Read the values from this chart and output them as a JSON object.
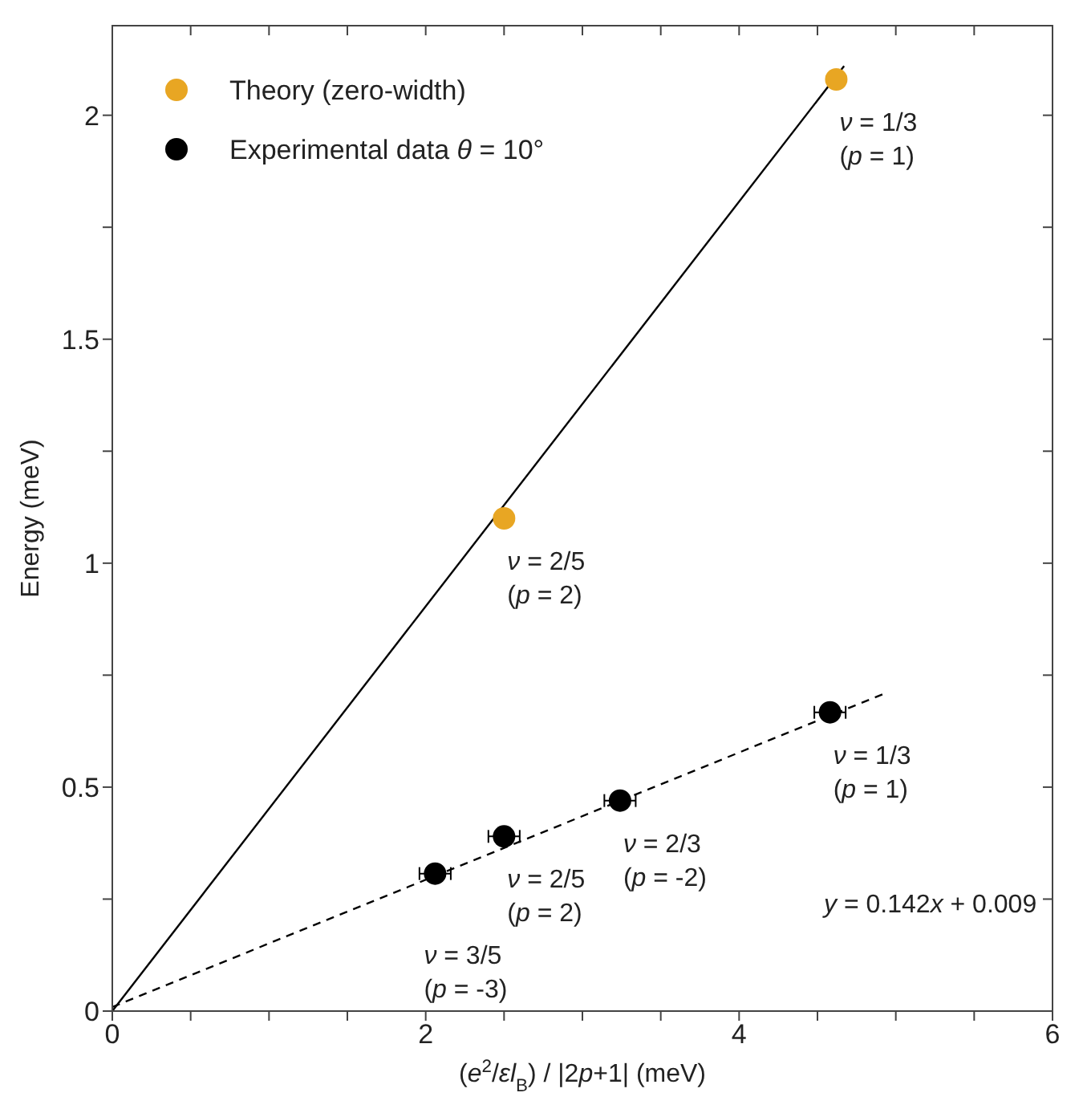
{
  "chart_data": {
    "type": "scatter",
    "xlabel": "(e$^{2}$/εl$_{B}$) / |2p+1|  (meV)",
    "ylabel": "Energy (meV)",
    "xlim": [
      0,
      6
    ],
    "xticks": [
      0,
      {
        "value": 0.5,
        "label": null
      },
      {
        "value": 1,
        "label": null
      },
      {
        "value": 1.5,
        "label": null
      },
      2,
      {
        "value": 2.5,
        "label": null
      },
      {
        "value": 3,
        "label": null
      },
      {
        "value": 3.5,
        "label": null
      },
      4,
      {
        "value": 4.5,
        "label": null
      },
      {
        "value": 5,
        "label": null
      },
      {
        "value": 5.5,
        "label": null
      },
      6
    ],
    "ylim": [
      0,
      2.2
    ],
    "yticks": [
      0,
      {
        "value": 0.25,
        "label": null
      },
      0.5,
      {
        "value": 0.75,
        "label": null
      },
      1,
      {
        "value": 1.25,
        "label": null
      },
      1.5,
      {
        "value": 1.75,
        "label": null
      },
      2
    ],
    "grid": false,
    "legend": "top left",
    "series": [
      {
        "name": "Theory (zero-width)",
        "color": "#e8a623",
        "marker": "circle",
        "x": [
          4.62,
          2.5
        ],
        "values": [
          2.08,
          1.1
        ]
      },
      {
        "name": "Experimental data  θ = 10°",
        "color": "#000000",
        "marker": "circle",
        "x": [
          2.06,
          2.5,
          3.24,
          4.58
        ],
        "values": [
          0.307,
          0.39,
          0.47,
          0.667
        ],
        "xerrors": [
          0.1,
          0.1,
          0.1,
          0.1
        ]
      },
      {
        "type": "line",
        "color": "#000000",
        "marker": "none",
        "line_style": "solid",
        "x": [
          0,
          4.67
        ],
        "values": [
          0,
          2.11
        ]
      },
      {
        "type": "line",
        "color": "#000000",
        "marker": "none",
        "line_style": "dashed",
        "x": [
          0,
          4.92
        ],
        "values": [
          0.009,
          0.708
        ]
      }
    ],
    "annotations": [
      {
        "text": "ν = 1/3\n(p = 1)",
        "x": 4.62,
        "y": 2.08
      },
      {
        "text": "ν = 2/5\n(p = 2)",
        "x": 2.5,
        "y": 1.1
      },
      {
        "text": "ν = 1/3\n(p = 1)",
        "x": 4.58,
        "y": 0.667
      },
      {
        "text": "ν = 2/3\n(p = -2)",
        "x": 3.24,
        "y": 0.47
      },
      {
        "text": "ν = 2/5\n(p = 2)",
        "x": 2.5,
        "y": 0.39
      },
      {
        "text": "ν = 3/5\n(p = -3)",
        "x": 2.06,
        "y": 0.307
      },
      "y = 0.142x + 0.009"
    ]
  }
}
